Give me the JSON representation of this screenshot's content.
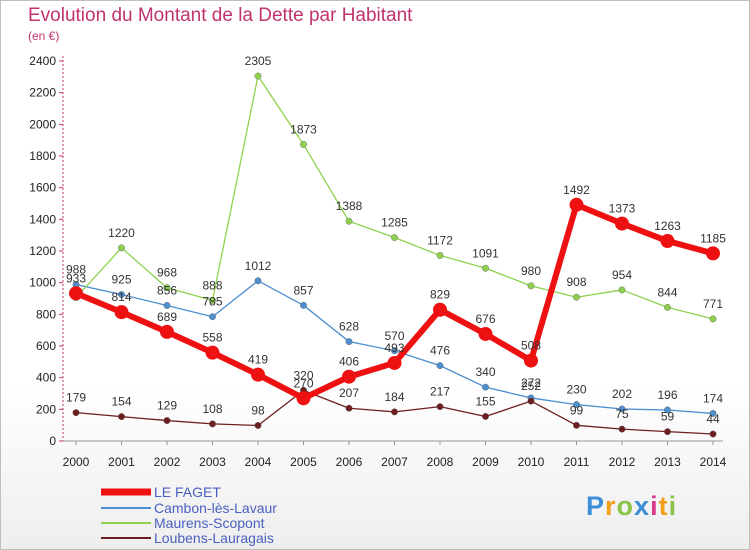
{
  "title": "Evolution du Montant de la Dette par Habitant",
  "subtitle": "(en €)",
  "logo": {
    "letters": [
      "P",
      "r",
      "o",
      "x",
      "i",
      "t",
      "i"
    ],
    "colors": [
      "#3c8ed8",
      "#f2a01b",
      "#8bc34a",
      "#3c8ed8",
      "#d93a8e",
      "#f2a01b",
      "#8bc34a"
    ]
  },
  "chart_data": {
    "type": "line",
    "x": [
      "2000",
      "2001",
      "2002",
      "2003",
      "2004",
      "2005",
      "2006",
      "2007",
      "2008",
      "2009",
      "2010",
      "2011",
      "2012",
      "2013",
      "2014"
    ],
    "ylim": [
      0,
      2400
    ],
    "yticks": [
      0,
      200,
      400,
      600,
      800,
      1000,
      1200,
      1400,
      1600,
      1800,
      2000,
      2200,
      2400
    ],
    "grid": false,
    "legend_position": "bottom-left",
    "series": [
      {
        "name": "LE FAGET",
        "color": "#ee1111",
        "values": [
          933,
          814,
          689,
          558,
          419,
          270,
          406,
          493,
          829,
          676,
          508,
          1492,
          1373,
          1263,
          1185
        ],
        "labels": [
          "933",
          "814",
          "689",
          "558",
          "419",
          "270",
          "406",
          "493",
          "829",
          "676",
          "508",
          "1492",
          "1373",
          "1263",
          "1185"
        ]
      },
      {
        "name": "Cambon-lès-Lavaur",
        "color": "#4d8fcf",
        "values": [
          988,
          925,
          856,
          785,
          1012,
          857,
          628,
          570,
          476,
          340,
          272,
          230,
          202,
          196,
          174
        ],
        "labels": [
          "988",
          "925",
          "856",
          "785",
          "1012",
          "857",
          "628",
          "570",
          "476",
          "340",
          "272",
          "230",
          "202",
          "196",
          "174"
        ]
      },
      {
        "name": "Maurens-Scopont",
        "color": "#8fd14f",
        "values": [
          905,
          1220,
          968,
          888,
          2305,
          1873,
          1388,
          1285,
          1172,
          1091,
          980,
          908,
          954,
          844,
          771
        ],
        "labels": [
          "",
          "1220",
          "968",
          "888",
          "2305",
          "1873",
          "1388",
          "1285",
          "1172",
          "1091",
          "980",
          "908",
          "954",
          "844",
          "771"
        ]
      },
      {
        "name": "Loubens-Lauragais",
        "color": "#6e1e1e",
        "values": [
          179,
          154,
          129,
          108,
          98,
          320,
          207,
          184,
          217,
          155,
          252,
          99,
          75,
          59,
          44
        ],
        "labels": [
          "179",
          "154",
          "129",
          "108",
          "98",
          "320",
          "207",
          "184",
          "217",
          "155",
          "252",
          "99",
          "75",
          "59",
          "44"
        ]
      }
    ]
  }
}
